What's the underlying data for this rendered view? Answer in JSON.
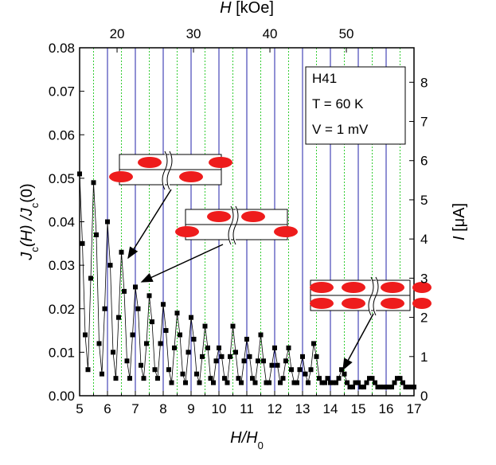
{
  "chart_data": {
    "type": "line",
    "x2label": [
      "H",
      " [kOe]"
    ],
    "xlabel": [
      "H/H",
      "0"
    ],
    "ylabel": [
      "J",
      "c",
      "(H) /J",
      "c",
      "(0)"
    ],
    "y2label": [
      "I",
      " [μA]"
    ],
    "annotation": [
      "H41",
      "T = 60 K",
      "V = 1 mV"
    ],
    "xlim": [
      5,
      17
    ],
    "xticks": [
      5,
      6,
      7,
      8,
      9,
      10,
      11,
      12,
      13,
      14,
      15,
      16,
      17
    ],
    "xminor": [
      5.5,
      6.5,
      7.5,
      8.5,
      9.5,
      10.5,
      11.5,
      12.5,
      13.5,
      14.5,
      15.5,
      16.5
    ],
    "grid_color": "#2222aa",
    "minor_grid_color": "#33cc33",
    "ylim": [
      0,
      0.08
    ],
    "yticks": [
      {
        "value": 0,
        "label": "0.00"
      },
      {
        "value": 0.01,
        "label": "0.01"
      },
      {
        "value": 0.02,
        "label": "0.02"
      },
      {
        "value": 0.03,
        "label": "0.03"
      },
      {
        "value": 0.04,
        "label": "0.04"
      },
      {
        "value": 0.05,
        "label": "0.05"
      },
      {
        "value": 0.06,
        "label": "0.06"
      },
      {
        "value": 0.07,
        "label": "0.07"
      },
      {
        "value": 0.08,
        "label": "0.08"
      }
    ],
    "y2lim": [
      0,
      8.88
    ],
    "y2ticks": [
      0,
      1,
      2,
      3,
      4,
      5,
      6,
      7,
      8
    ],
    "x2lim": [
      15.1,
      58.85
    ],
    "x2ticks": [
      20,
      30,
      40,
      50
    ],
    "x": [
      5.0,
      5.1,
      5.2,
      5.3,
      5.4,
      5.5,
      5.6,
      5.7,
      5.8,
      5.9,
      6.0,
      6.1,
      6.2,
      6.3,
      6.4,
      6.5,
      6.6,
      6.7,
      6.8,
      6.9,
      7.0,
      7.1,
      7.2,
      7.3,
      7.4,
      7.5,
      7.6,
      7.7,
      7.8,
      7.9,
      8.0,
      8.1,
      8.2,
      8.3,
      8.4,
      8.5,
      8.6,
      8.7,
      8.8,
      8.9,
      9.0,
      9.1,
      9.2,
      9.3,
      9.4,
      9.5,
      9.6,
      9.7,
      9.8,
      9.9,
      10.0,
      10.1,
      10.2,
      10.3,
      10.4,
      10.5,
      10.6,
      10.7,
      10.8,
      10.9,
      11.0,
      11.1,
      11.2,
      11.3,
      11.4,
      11.5,
      11.6,
      11.7,
      11.8,
      11.9,
      12.0,
      12.1,
      12.2,
      12.3,
      12.4,
      12.5,
      12.6,
      12.7,
      12.8,
      12.9,
      13.0,
      13.1,
      13.2,
      13.3,
      13.4,
      13.5,
      13.6,
      13.7,
      13.8,
      13.9,
      14.0,
      14.1,
      14.2,
      14.3,
      14.4,
      14.5,
      14.6,
      14.7,
      14.8,
      14.9,
      15.0,
      15.1,
      15.2,
      15.3,
      15.4,
      15.5,
      15.6,
      15.7,
      15.8,
      15.9,
      16.0,
      16.1,
      16.2,
      16.3,
      16.4,
      16.5,
      16.6,
      16.7,
      16.8,
      16.9,
      17.0
    ],
    "series": [
      {
        "color": "#000000",
        "values": [
          0.051,
          0.035,
          0.014,
          0.006,
          0.027,
          0.049,
          0.037,
          0.012,
          0.005,
          0.02,
          0.04,
          0.03,
          0.01,
          0.004,
          0.018,
          0.033,
          0.024,
          0.008,
          0.004,
          0.014,
          0.025,
          0.02,
          0.007,
          0.004,
          0.012,
          0.023,
          0.017,
          0.006,
          0.004,
          0.012,
          0.021,
          0.015,
          0.006,
          0.003,
          0.011,
          0.019,
          0.014,
          0.005,
          0.003,
          0.01,
          0.018,
          0.013,
          0.005,
          0.003,
          0.009,
          0.016,
          0.011,
          0.004,
          0.003,
          0.008,
          0.011,
          0.009,
          0.004,
          0.003,
          0.009,
          0.016,
          0.01,
          0.004,
          0.003,
          0.008,
          0.013,
          0.009,
          0.004,
          0.003,
          0.008,
          0.014,
          0.008,
          0.003,
          0.003,
          0.007,
          0.011,
          0.007,
          0.003,
          0.004,
          0.008,
          0.011,
          0.006,
          0.003,
          0.003,
          0.006,
          0.009,
          0.005,
          0.003,
          0.006,
          0.012,
          0.009,
          0.004,
          0.003,
          0.003,
          0.004,
          0.003,
          0.003,
          0.003,
          0.004,
          0.006,
          0.005,
          0.003,
          0.002,
          0.002,
          0.003,
          0.003,
          0.002,
          0.002,
          0.003,
          0.004,
          0.004,
          0.003,
          0.002,
          0.002,
          0.002,
          0.002,
          0.002,
          0.002,
          0.003,
          0.004,
          0.004,
          0.003,
          0.002,
          0.002,
          0.002,
          0.002
        ]
      }
    ]
  }
}
